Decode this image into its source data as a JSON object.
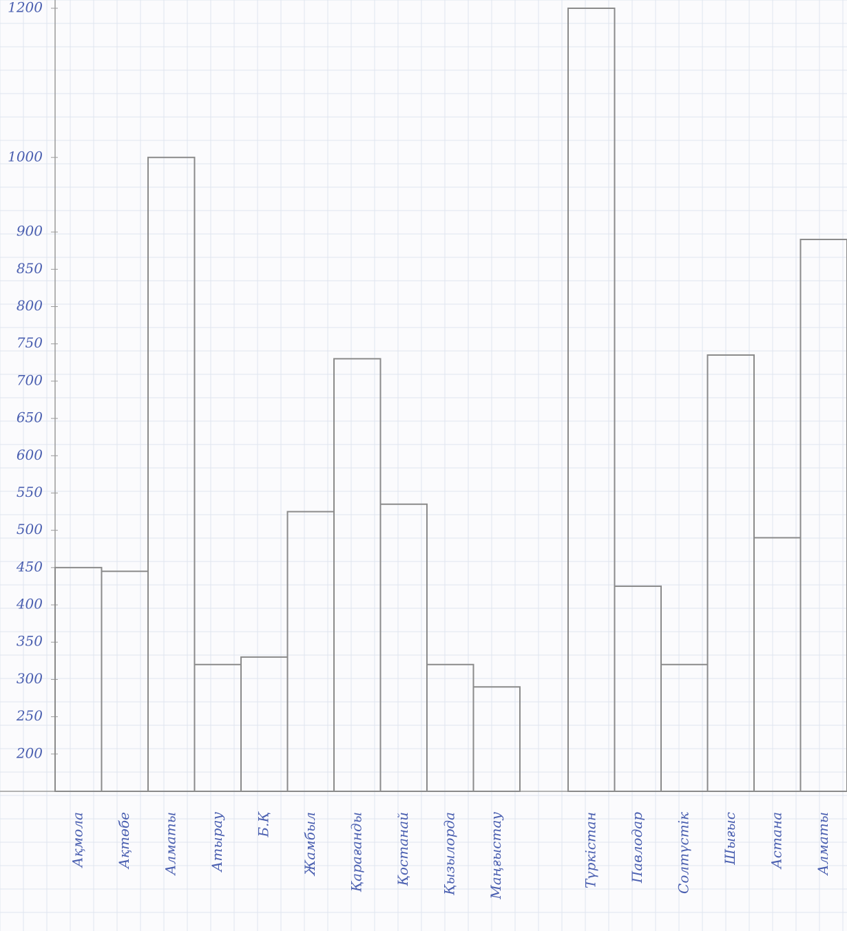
{
  "chart_data": {
    "type": "bar",
    "categories": [
      "Ақмола",
      "Ақтөбе",
      "Алматы",
      "Атырау",
      "Б.Қ",
      "Жамбыл",
      "Қарағанды",
      "Қостанай",
      "Қызылорда",
      "Маңғыстау",
      "Түркістан",
      "Павлодар",
      "Солтүстік",
      "Шығыс",
      "Астана",
      "Алматы"
    ],
    "values": [
      450,
      445,
      1000,
      320,
      330,
      525,
      730,
      535,
      320,
      290,
      1200,
      425,
      320,
      735,
      490,
      890
    ],
    "color": "#8a8a8a",
    "ylim": [
      150,
      1200
    ],
    "yticks": [
      200,
      250,
      300,
      350,
      400,
      450,
      500,
      550,
      600,
      650,
      700,
      750,
      800,
      850,
      900,
      1000,
      1200
    ],
    "grid": true
  }
}
